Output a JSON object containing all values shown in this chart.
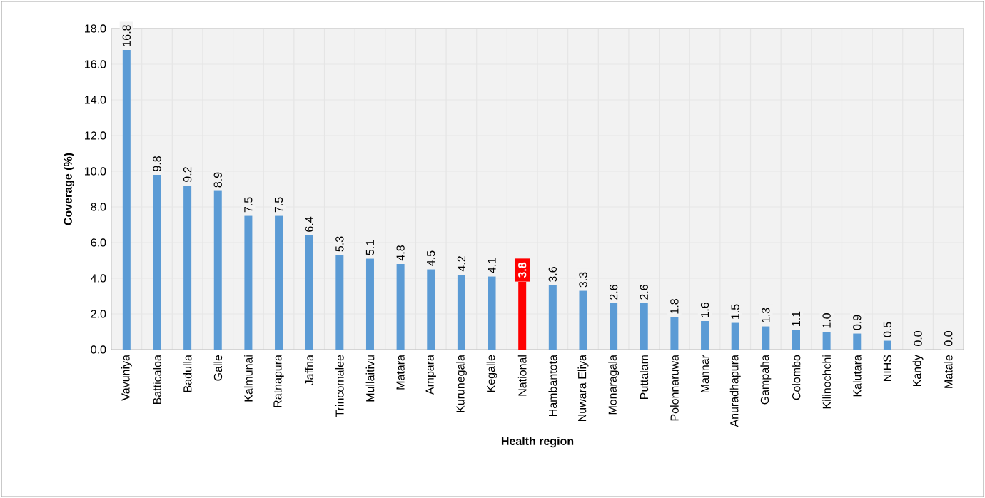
{
  "chart_data": {
    "type": "bar",
    "xlabel": "Health region",
    "ylabel": "Coverage (%)",
    "categories": [
      "Vavuniya",
      "Batticaloa",
      "Badulla",
      "Galle",
      "Kalmunai",
      "Ratnapura",
      "Jaffna",
      "Trincomalee",
      "Mullaitivu",
      "Matara",
      "Ampara",
      "Kurunegala",
      "Kegalle",
      "National",
      "Hambantota",
      "Nuwara Eliya",
      "Monaragala",
      "Puttalam",
      "Polonnaruwa",
      "Mannar",
      "Anuradhapura",
      "Gampaha",
      "Colombo",
      "Kilinochchi",
      "Kalutara",
      "NIHS",
      "Kandy",
      "Matale"
    ],
    "values": [
      16.8,
      9.8,
      9.2,
      8.9,
      7.5,
      7.5,
      6.4,
      5.3,
      5.1,
      4.8,
      4.5,
      4.2,
      4.1,
      3.8,
      3.6,
      3.3,
      2.6,
      2.6,
      1.8,
      1.6,
      1.5,
      1.3,
      1.1,
      1.0,
      0.9,
      0.5,
      0,
      0
    ],
    "value_labels": [
      "16.8",
      "9.8",
      "9.2",
      "8.9",
      "7.5",
      "7.5",
      "6.4",
      "5.3",
      "5.1",
      "4.8",
      "4.5",
      "4.2",
      "4.1",
      "3.8",
      "3.6",
      "3.3",
      "2.6",
      "2.6",
      "1.8",
      "1.6",
      "1.5",
      "1.3",
      "1.1",
      "1.0",
      "0.9",
      "0.5",
      "0.0",
      "0.0"
    ],
    "color": "#5b9bd5",
    "colors": [
      "#5b9bd5",
      "#5b9bd5",
      "#5b9bd5",
      "#5b9bd5",
      "#5b9bd5",
      "#5b9bd5",
      "#5b9bd5",
      "#5b9bd5",
      "#5b9bd5",
      "#5b9bd5",
      "#5b9bd5",
      "#5b9bd5",
      "#5b9bd5",
      "#ff0000",
      "#5b9bd5",
      "#5b9bd5",
      "#5b9bd5",
      "#5b9bd5",
      "#5b9bd5",
      "#5b9bd5",
      "#5b9bd5",
      "#5b9bd5",
      "#5b9bd5",
      "#5b9bd5",
      "#5b9bd5",
      "#5b9bd5",
      "#5b9bd5",
      "#5b9bd5"
    ],
    "ylim": [
      0,
      18
    ],
    "yticks": [
      {
        "value": 0,
        "label": "0.0"
      },
      {
        "value": 2,
        "label": "2.0"
      },
      {
        "value": 4,
        "label": "4.0"
      },
      {
        "value": 6,
        "label": "6.0"
      },
      {
        "value": 8,
        "label": "8.0"
      },
      {
        "value": 10,
        "label": "10.0"
      },
      {
        "value": 12,
        "label": "12.0"
      },
      {
        "value": 14,
        "label": "14.0"
      },
      {
        "value": 16,
        "label": "16.0"
      },
      {
        "value": 18,
        "label": "18.0"
      }
    ],
    "grid": true
  }
}
